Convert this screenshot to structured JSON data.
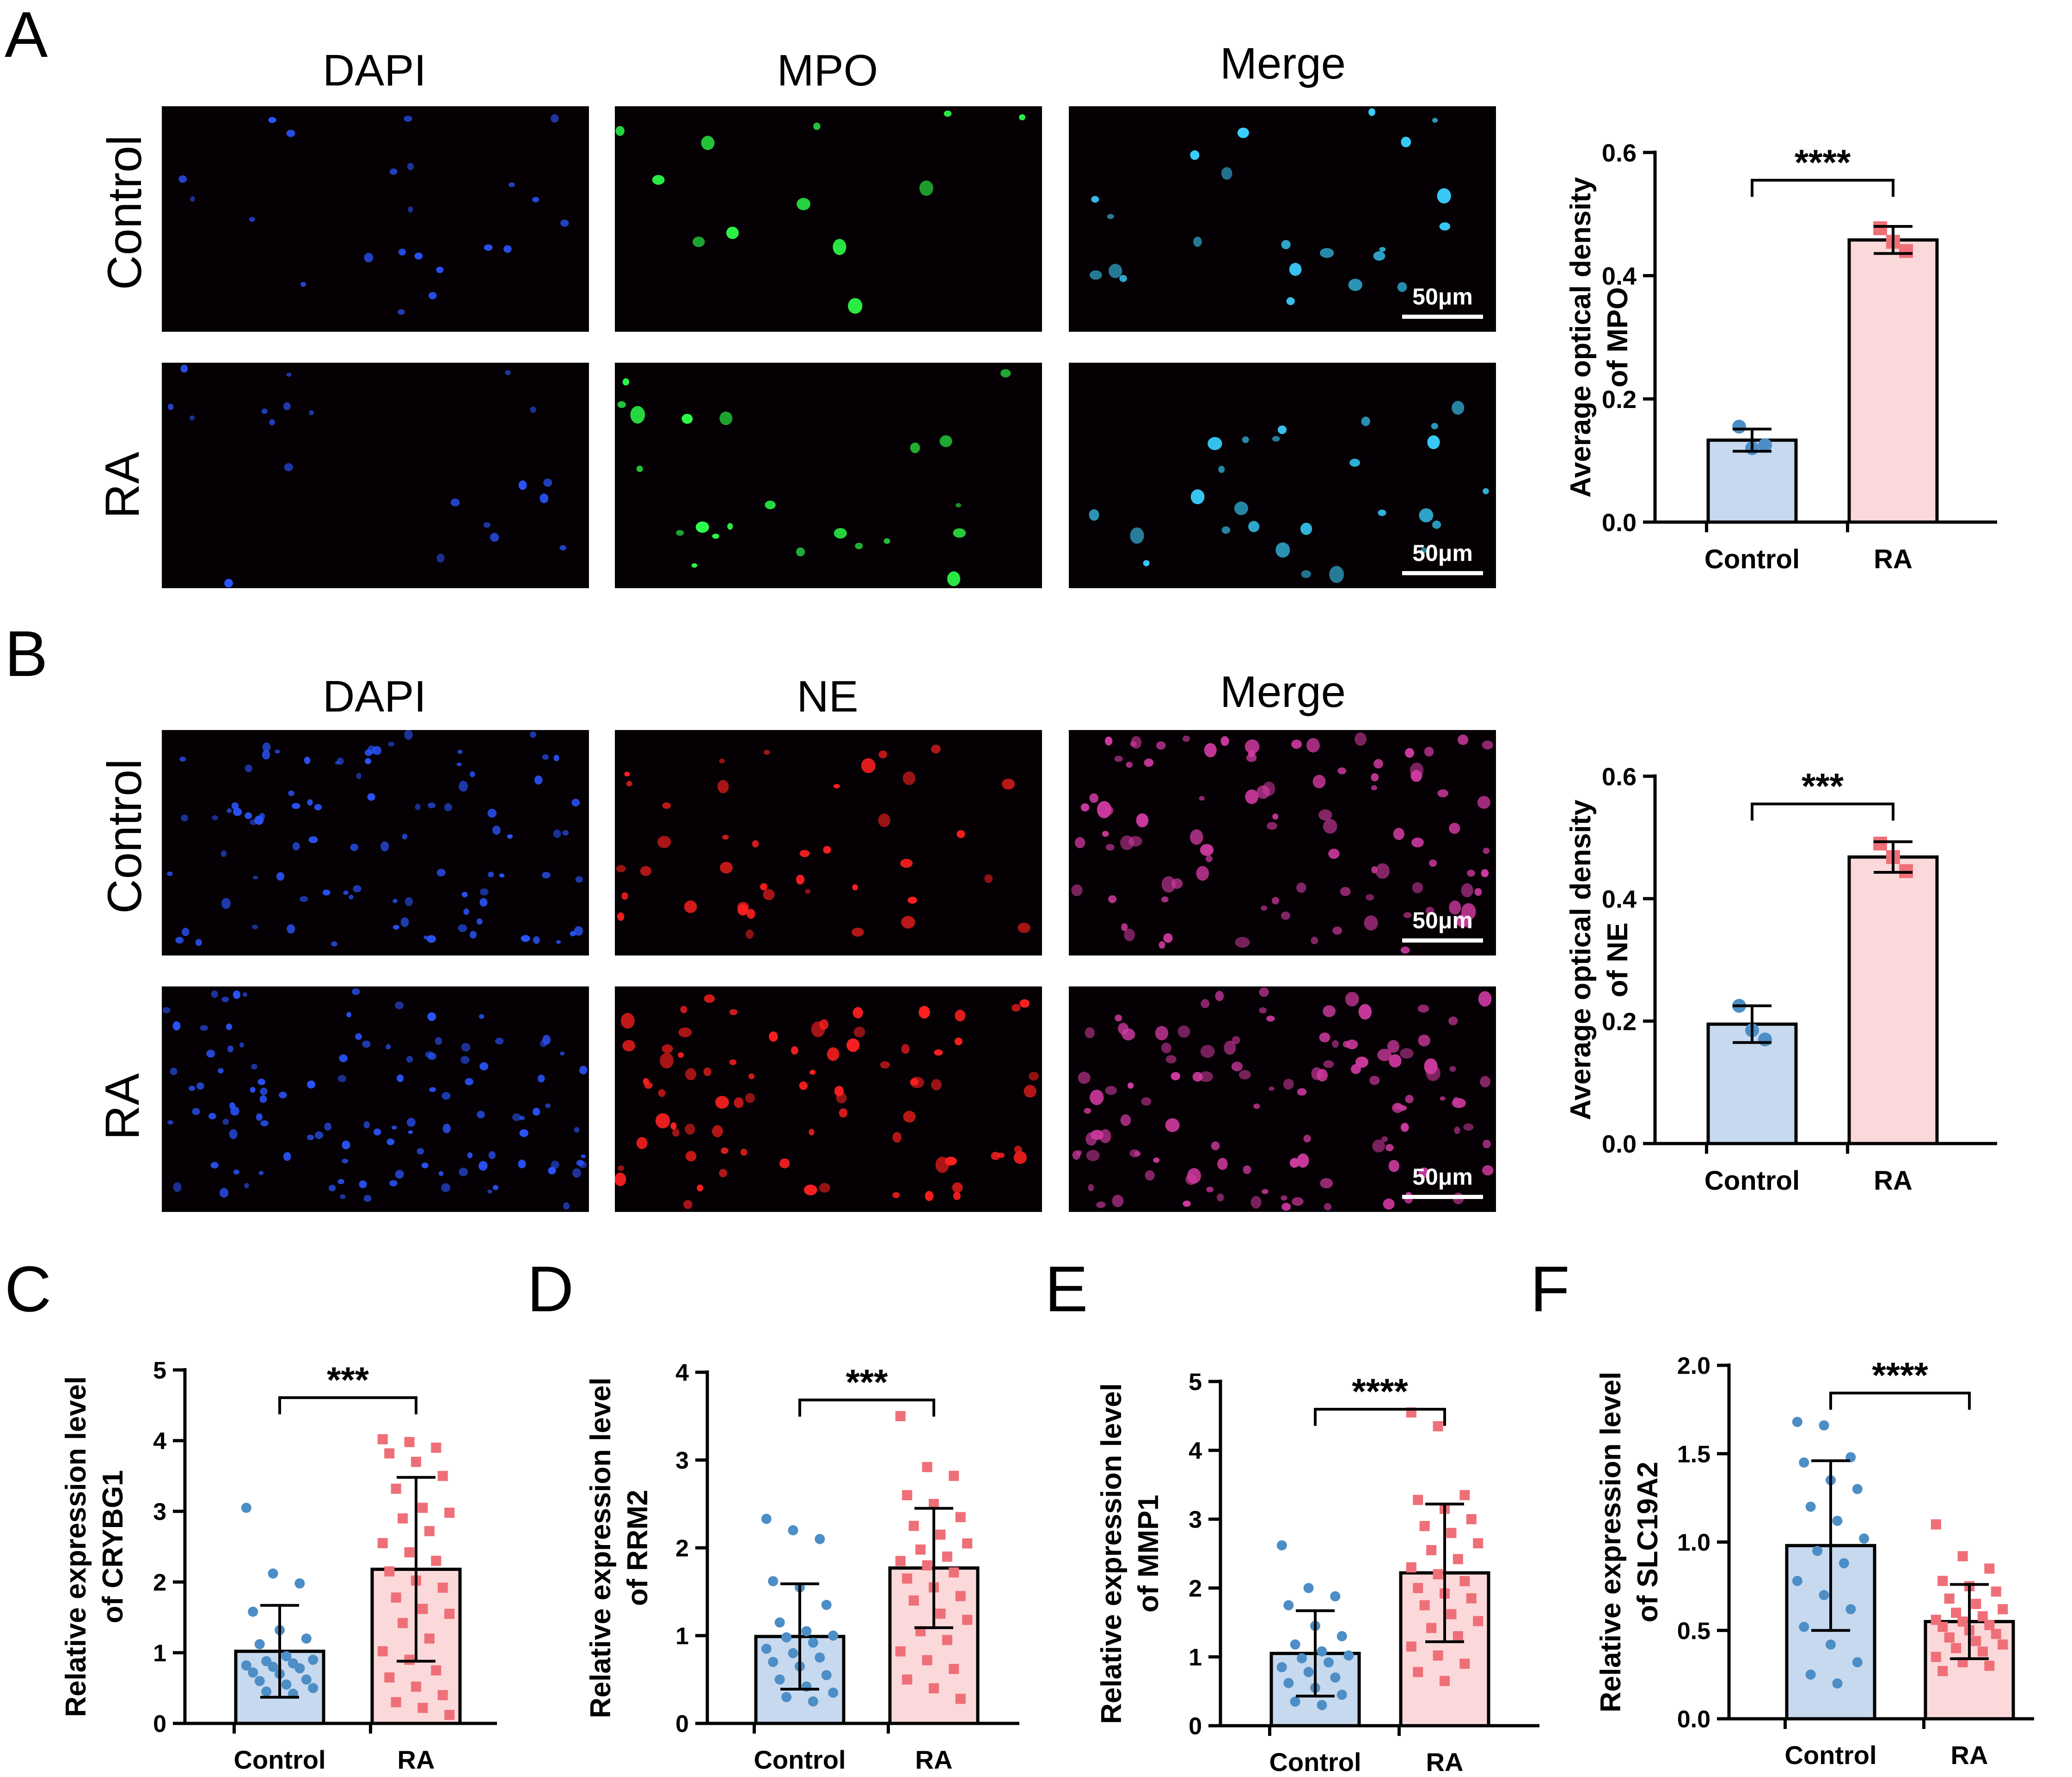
{
  "panels": {
    "A": {
      "letter": "A",
      "columns": [
        "DAPI",
        "MPO",
        "Merge"
      ],
      "rows": [
        "Control",
        "RA"
      ],
      "scale_label": "50μm",
      "channel_colors": {
        "DAPI": "#2b55ff",
        "MPO": "#2dff4a",
        "Merge": "#3ad0ff"
      }
    },
    "B": {
      "letter": "B",
      "columns": [
        "DAPI",
        "NE",
        "Merge"
      ],
      "rows": [
        "Control",
        "RA"
      ],
      "scale_label": "50μm",
      "channel_colors": {
        "DAPI": "#2b55ff",
        "NE": "#ff2020",
        "Merge": "#d03aa0"
      }
    },
    "C": {
      "letter": "C"
    },
    "D": {
      "letter": "D"
    },
    "E": {
      "letter": "E"
    },
    "F": {
      "letter": "F"
    }
  },
  "colors": {
    "control_fill": "#c7d9ef",
    "ra_fill": "#fbd9da",
    "control_point": "#4c8ec5",
    "ra_point": "#ef6f78",
    "axis": "#000000"
  },
  "chart_data": [
    {
      "id": "A",
      "type": "bar",
      "categories": [
        "Control",
        "RA"
      ],
      "values": [
        0.133,
        0.458
      ],
      "errors": [
        0.018,
        0.022
      ],
      "points": [
        [
          0.155,
          0.12,
          0.125
        ],
        [
          0.477,
          0.455,
          0.44
        ]
      ],
      "ylabel": [
        "Average optical density",
        "of MPO"
      ],
      "ylim": [
        0,
        0.6
      ],
      "yticks": [
        "0.0",
        "0.2",
        "0.4",
        "0.6"
      ],
      "significance": "****",
      "point_shapes": [
        "circle",
        "square"
      ]
    },
    {
      "id": "B",
      "type": "bar",
      "categories": [
        "Control",
        "RA"
      ],
      "values": [
        0.195,
        0.468
      ],
      "errors": [
        0.03,
        0.025
      ],
      "points": [
        [
          0.225,
          0.185,
          0.17
        ],
        [
          0.49,
          0.468,
          0.445
        ]
      ],
      "ylabel": [
        "Average optical density",
        "of NE"
      ],
      "ylim": [
        0,
        0.6
      ],
      "yticks": [
        "0.0",
        "0.2",
        "0.4",
        "0.6"
      ],
      "significance": "***",
      "point_shapes": [
        "circle",
        "square"
      ]
    },
    {
      "id": "C",
      "type": "bar",
      "categories": [
        "Control",
        "RA"
      ],
      "values": [
        1.02,
        2.18
      ],
      "errors": [
        0.65,
        1.3
      ],
      "points": [
        [
          3.05,
          2.12,
          1.98,
          1.58,
          1.32,
          1.2,
          1.12,
          0.95,
          0.9,
          0.88,
          0.85,
          0.82,
          0.8,
          0.78,
          0.72,
          0.7,
          0.62,
          0.6,
          0.55,
          0.5,
          0.45,
          0.42
        ],
        [
          4.02,
          3.98,
          3.9,
          3.82,
          3.7,
          3.5,
          3.32,
          3.05,
          2.98,
          2.9,
          2.72,
          2.55,
          2.42,
          2.3,
          2.15,
          2.02,
          1.92,
          1.78,
          1.62,
          1.55,
          1.42,
          1.2,
          1.02,
          0.9,
          0.75,
          0.65,
          0.52,
          0.4,
          0.3,
          0.22,
          0.12
        ]
      ],
      "ylabel": [
        "Relative expression level",
        "of CRYBG1"
      ],
      "ylim": [
        0,
        5
      ],
      "yticks": [
        "0",
        "1",
        "2",
        "3",
        "4",
        "5"
      ],
      "significance": "***",
      "point_shapes": [
        "circle",
        "square"
      ]
    },
    {
      "id": "D",
      "type": "bar",
      "categories": [
        "Control",
        "RA"
      ],
      "values": [
        0.99,
        1.77
      ],
      "errors": [
        0.6,
        0.68
      ],
      "points": [
        [
          2.33,
          2.2,
          2.1,
          1.62,
          1.55,
          1.35,
          1.15,
          1.05,
          1.0,
          0.98,
          0.92,
          0.85,
          0.8,
          0.75,
          0.7,
          0.65,
          0.55,
          0.5,
          0.42,
          0.35,
          0.3,
          0.25
        ],
        [
          3.5,
          2.92,
          2.82,
          2.6,
          2.5,
          2.35,
          2.25,
          2.15,
          2.05,
          1.98,
          1.9,
          1.85,
          1.8,
          1.72,
          1.65,
          1.55,
          1.45,
          1.4,
          1.25,
          1.18,
          1.05,
          0.95,
          0.82,
          0.72,
          0.62,
          0.5,
          0.4,
          0.28
        ]
      ],
      "ylabel": [
        "Relative expression level",
        "of RRM2"
      ],
      "ylim": [
        0,
        4
      ],
      "yticks": [
        "0",
        "1",
        "2",
        "3",
        "4"
      ],
      "significance": "***",
      "point_shapes": [
        "circle",
        "square"
      ]
    },
    {
      "id": "E",
      "type": "bar",
      "categories": [
        "Control",
        "RA"
      ],
      "values": [
        1.05,
        2.22
      ],
      "errors": [
        0.62,
        1.0
      ],
      "points": [
        [
          2.62,
          2.0,
          1.88,
          1.75,
          1.45,
          1.3,
          1.18,
          1.08,
          1.02,
          0.98,
          0.92,
          0.85,
          0.78,
          0.7,
          0.62,
          0.55,
          0.45,
          0.35,
          0.3
        ],
        [
          4.55,
          4.35,
          3.35,
          3.28,
          3.15,
          3.0,
          2.9,
          2.8,
          2.65,
          2.55,
          2.42,
          2.3,
          2.2,
          2.1,
          2.0,
          1.92,
          1.85,
          1.75,
          1.62,
          1.52,
          1.42,
          1.3,
          1.15,
          1.02,
          0.9,
          0.78,
          0.65
        ]
      ],
      "ylabel": [
        "Relative expression level",
        "of MMP1"
      ],
      "ylim": [
        0,
        5
      ],
      "yticks": [
        "0",
        "1",
        "2",
        "3",
        "4",
        "5"
      ],
      "significance": "****",
      "point_shapes": [
        "circle",
        "square"
      ]
    },
    {
      "id": "F",
      "type": "bar",
      "categories": [
        "Control",
        "RA"
      ],
      "values": [
        0.98,
        0.55
      ],
      "errors": [
        0.48,
        0.21
      ],
      "points": [
        [
          1.68,
          1.66,
          1.48,
          1.45,
          1.35,
          1.3,
          1.2,
          1.12,
          1.02,
          0.95,
          0.88,
          0.78,
          0.7,
          0.62,
          0.52,
          0.42,
          0.32,
          0.25,
          0.2
        ],
        [
          1.1,
          0.92,
          0.85,
          0.78,
          0.75,
          0.72,
          0.68,
          0.65,
          0.62,
          0.6,
          0.58,
          0.56,
          0.55,
          0.53,
          0.52,
          0.5,
          0.48,
          0.46,
          0.44,
          0.42,
          0.4,
          0.38,
          0.35,
          0.32,
          0.3,
          0.27
        ]
      ],
      "ylabel": [
        "Relative expression level",
        "of SLC19A2"
      ],
      "ylim": [
        0,
        2.0
      ],
      "yticks": [
        "0.0",
        "0.5",
        "1.0",
        "1.5",
        "2.0"
      ],
      "significance": "****",
      "point_shapes": [
        "circle",
        "square"
      ]
    }
  ]
}
